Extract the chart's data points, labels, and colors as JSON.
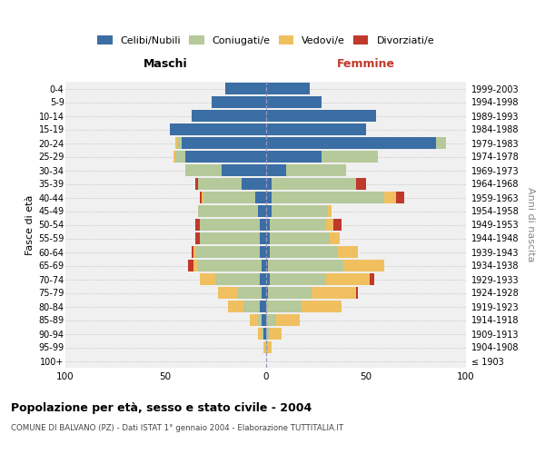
{
  "age_groups": [
    "100+",
    "95-99",
    "90-94",
    "85-89",
    "80-84",
    "75-79",
    "70-74",
    "65-69",
    "60-64",
    "55-59",
    "50-54",
    "45-49",
    "40-44",
    "35-39",
    "30-34",
    "25-29",
    "20-24",
    "15-19",
    "10-14",
    "5-9",
    "0-4"
  ],
  "birth_years": [
    "≤ 1903",
    "1904-1908",
    "1909-1913",
    "1914-1918",
    "1919-1923",
    "1924-1928",
    "1929-1933",
    "1934-1938",
    "1939-1943",
    "1944-1948",
    "1949-1953",
    "1954-1958",
    "1959-1963",
    "1964-1968",
    "1969-1973",
    "1974-1978",
    "1979-1983",
    "1984-1988",
    "1989-1993",
    "1994-1998",
    "1999-2003"
  ],
  "maschi": {
    "celibi": [
      0,
      0,
      1,
      2,
      3,
      2,
      3,
      2,
      3,
      3,
      3,
      4,
      5,
      12,
      22,
      40,
      42,
      48,
      37,
      27,
      20
    ],
    "coniugati": [
      0,
      0,
      1,
      2,
      8,
      12,
      22,
      32,
      32,
      30,
      30,
      30,
      26,
      22,
      18,
      5,
      2,
      0,
      0,
      0,
      0
    ],
    "vedovi": [
      0,
      1,
      2,
      4,
      8,
      10,
      8,
      2,
      1,
      0,
      0,
      0,
      1,
      0,
      0,
      1,
      1,
      0,
      0,
      0,
      0
    ],
    "divorziati": [
      0,
      0,
      0,
      0,
      0,
      0,
      0,
      3,
      1,
      2,
      2,
      0,
      1,
      1,
      0,
      0,
      0,
      0,
      0,
      0,
      0
    ]
  },
  "femmine": {
    "nubili": [
      0,
      0,
      0,
      0,
      0,
      1,
      2,
      1,
      2,
      2,
      2,
      3,
      3,
      3,
      10,
      28,
      85,
      50,
      55,
      28,
      22
    ],
    "coniugate": [
      0,
      1,
      2,
      5,
      18,
      22,
      28,
      38,
      34,
      30,
      28,
      28,
      56,
      42,
      30,
      28,
      5,
      0,
      0,
      0,
      0
    ],
    "vedove": [
      0,
      2,
      6,
      12,
      20,
      22,
      22,
      20,
      10,
      5,
      4,
      2,
      6,
      0,
      0,
      0,
      0,
      0,
      0,
      0,
      0
    ],
    "divorziate": [
      0,
      0,
      0,
      0,
      0,
      1,
      2,
      0,
      0,
      0,
      4,
      0,
      4,
      5,
      0,
      0,
      0,
      0,
      0,
      0,
      0
    ]
  },
  "colors": {
    "celibi_nubili": "#3b6ea5",
    "coniugati": "#b5c99a",
    "vedovi": "#f0c060",
    "divorziati": "#c0392b"
  },
  "xlim": 100,
  "title": "Popolazione per età, sesso e stato civile - 2004",
  "subtitle": "COMUNE DI BALVANO (PZ) - Dati ISTAT 1° gennaio 2004 - Elaborazione TUTTITALIA.IT",
  "xlabel_left": "Maschi",
  "xlabel_right": "Femmine",
  "ylabel_left": "Fasce di età",
  "ylabel_right": "Anni di nascita",
  "bg_color": "#ffffff",
  "plot_bg": "#f0f0f0",
  "grid_color": "#cccccc"
}
